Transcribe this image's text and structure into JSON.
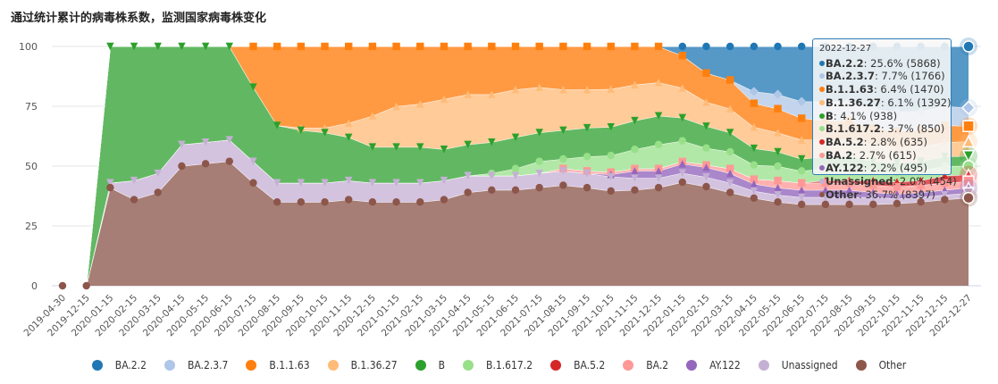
{
  "title": "通过统计累计的病毒株系数，监测国家病毒株变化",
  "chart_data": {
    "type": "area",
    "stacked": "percent",
    "title": "通过统计累计的病毒株系数，监测国家病毒株变化",
    "ylim": [
      0,
      100
    ],
    "yticks": [
      "0",
      "25",
      "50",
      "75",
      "100"
    ],
    "grid": true,
    "legend_position": "bottom",
    "categories": [
      "2019-04-30",
      "2019-12-15",
      "2020-01-15",
      "2020-02-15",
      "2020-03-15",
      "2020-04-15",
      "2020-05-15",
      "2020-06-15",
      "2020-07-15",
      "2020-08-15",
      "2020-09-15",
      "2020-10-15",
      "2020-11-15",
      "2020-12-15",
      "2021-01-15",
      "2021-02-15",
      "2021-03-15",
      "2021-04-15",
      "2021-05-15",
      "2021-06-15",
      "2021-07-15",
      "2021-08-15",
      "2021-09-15",
      "2021-10-15",
      "2021-11-15",
      "2021-12-15",
      "2022-01-15",
      "2022-02-15",
      "2022-03-15",
      "2022-04-15",
      "2022-05-15",
      "2022-06-15",
      "2022-07-15",
      "2022-08-15",
      "2022-09-15",
      "2022-10-15",
      "2022-11-15",
      "2022-12-15",
      "2022-12-27"
    ],
    "series": [
      {
        "name": "Other",
        "color": "#8c564b",
        "fill": "#a67e75",
        "marker": "circle",
        "values": [
          0,
          0,
          41,
          36,
          39,
          50,
          51,
          52,
          43,
          35,
          35,
          35,
          36,
          35,
          35,
          35,
          36,
          39,
          40,
          40,
          41,
          42,
          41,
          40,
          40,
          41,
          45,
          41,
          39,
          37,
          35,
          34,
          34,
          34,
          34,
          34,
          35,
          36,
          36.7
        ]
      },
      {
        "name": "Unassigned",
        "color": "#c5b0d5",
        "fill": "#d4c3df",
        "marker": "triangle-down",
        "values": [
          0,
          0,
          2,
          8,
          8,
          9,
          9,
          9,
          9,
          8,
          8,
          8,
          8,
          8,
          8,
          8,
          8,
          7,
          6,
          6,
          6,
          6,
          6,
          6,
          5,
          4,
          4,
          4,
          4,
          3,
          3,
          3,
          3,
          3,
          3,
          2,
          2,
          2,
          2.0
        ]
      },
      {
        "name": "AY.122",
        "color": "#9467bd",
        "fill": "#aa87cb",
        "marker": "triangle",
        "values": [
          0,
          0,
          0,
          0,
          0,
          0,
          0,
          0,
          0,
          0,
          0,
          0,
          0,
          0,
          0,
          0,
          0,
          0,
          0,
          0,
          0,
          0,
          0,
          1,
          3,
          3,
          4,
          4,
          4,
          3,
          3,
          3,
          3,
          3,
          2,
          2,
          2,
          2,
          2.2
        ]
      },
      {
        "name": "BA.2",
        "color": "#ff9896",
        "fill": "#ffb1af",
        "marker": "square",
        "values": [
          0,
          0,
          0,
          0,
          0,
          0,
          0,
          0,
          0,
          0,
          0,
          0,
          0,
          0,
          0,
          0,
          0,
          0,
          0,
          0,
          0,
          1,
          1,
          1,
          1,
          1,
          1,
          1,
          2,
          2,
          3,
          3,
          3,
          3,
          3,
          3,
          3,
          3,
          2.7
        ]
      },
      {
        "name": "BA.5.2",
        "color": "#d62728",
        "fill": "#e05a5b",
        "marker": "triangle",
        "values": [
          0,
          0,
          0,
          0,
          0,
          0,
          0,
          0,
          0,
          0,
          0,
          0,
          0,
          0,
          0,
          0,
          0,
          0,
          0,
          0,
          0,
          0,
          0,
          0,
          0,
          0,
          0,
          0,
          0,
          0,
          0,
          0,
          1,
          1,
          2,
          2,
          2,
          3,
          2.8
        ]
      },
      {
        "name": "B.1.617.2",
        "color": "#98df8a",
        "fill": "#b2e8a7",
        "marker": "circle",
        "values": [
          0,
          0,
          0,
          0,
          0,
          0,
          0,
          0,
          0,
          0,
          0,
          0,
          0,
          0,
          0,
          0,
          0,
          0,
          1,
          3,
          5,
          4,
          6,
          7,
          8,
          10,
          9,
          7,
          7,
          6,
          6,
          5,
          5,
          5,
          4,
          4,
          4,
          4,
          3.7
        ]
      },
      {
        "name": "B",
        "color": "#2ca02c",
        "fill": "#62b862",
        "marker": "triangle-down",
        "values": [
          0,
          0,
          57,
          56,
          53,
          41,
          40,
          39,
          31,
          24,
          22,
          21,
          18,
          15,
          15,
          15,
          13,
          13,
          13,
          13,
          12,
          12,
          12,
          12,
          12,
          12,
          10,
          9,
          8,
          7,
          6,
          5,
          5,
          5,
          4,
          4,
          4,
          4,
          4.1
        ]
      },
      {
        "name": "B.1.36.27",
        "color": "#ffbb78",
        "fill": "#ffcb98",
        "marker": "triangle",
        "values": [
          0,
          0,
          0,
          0,
          0,
          0,
          0,
          0,
          0,
          0,
          1,
          2,
          6,
          13,
          17,
          18,
          21,
          21,
          20,
          20,
          19,
          17,
          16,
          16,
          15,
          14,
          13,
          10,
          10,
          9,
          8,
          8,
          7,
          7,
          7,
          6,
          6,
          6,
          6.1
        ]
      },
      {
        "name": "B.1.1.63",
        "color": "#ff7f0e",
        "fill": "#ff9a43",
        "marker": "square",
        "values": [
          0,
          0,
          0,
          0,
          0,
          0,
          0,
          0,
          17,
          33,
          34,
          34,
          32,
          29,
          25,
          24,
          22,
          20,
          20,
          18,
          17,
          18,
          18,
          18,
          16,
          15,
          14,
          12,
          12,
          10,
          10,
          9,
          8,
          8,
          7,
          7,
          7,
          7,
          6.4
        ]
      },
      {
        "name": "BA.2.3.7",
        "color": "#aec7e8",
        "fill": "#c3d5ec",
        "marker": "diamond",
        "values": [
          0,
          0,
          0,
          0,
          0,
          0,
          0,
          0,
          0,
          0,
          0,
          0,
          0,
          0,
          0,
          0,
          0,
          0,
          0,
          0,
          0,
          0,
          0,
          0,
          0,
          0,
          0,
          0,
          0,
          5,
          6,
          7,
          8,
          8,
          8,
          8,
          8,
          8,
          7.7
        ]
      },
      {
        "name": "BA.2.2",
        "color": "#1f77b4",
        "fill": "#5698c6",
        "marker": "circle",
        "values": [
          0,
          0,
          0,
          0,
          0,
          0,
          0,
          0,
          0,
          0,
          0,
          0,
          0,
          0,
          0,
          0,
          0,
          0,
          0,
          0,
          0,
          0,
          0,
          0,
          0,
          0,
          4,
          11,
          14,
          19,
          20,
          23,
          23,
          23,
          26,
          27,
          27,
          25,
          25.6
        ]
      }
    ],
    "legend": [
      "BA.2.2",
      "BA.2.3.7",
      "B.1.1.63",
      "B.1.36.27",
      "B",
      "B.1.617.2",
      "BA.5.2",
      "BA.2",
      "AY.122",
      "Unassigned",
      "Other"
    ],
    "tooltip": {
      "date": "2022-12-27",
      "rows": [
        {
          "name": "BA.2.2",
          "text": ": 25.6% (5868)",
          "color": "#1f77b4"
        },
        {
          "name": "BA.2.3.7",
          "text": ": 7.7% (1766)",
          "color": "#aec7e8"
        },
        {
          "name": "B.1.1.63",
          "text": ": 6.4% (1470)",
          "color": "#ff7f0e"
        },
        {
          "name": "B.1.36.27",
          "text": ": 6.1% (1392)",
          "color": "#ffbb78"
        },
        {
          "name": "B",
          "text": ": 4.1% (938)",
          "color": "#2ca02c"
        },
        {
          "name": "B.1.617.2",
          "text": ": 3.7% (850)",
          "color": "#98df8a"
        },
        {
          "name": "BA.5.2",
          "text": ": 2.8% (635)",
          "color": "#d62728"
        },
        {
          "name": "BA.2",
          "text": ": 2.7% (615)",
          "color": "#ff9896"
        },
        {
          "name": "AY.122",
          "text": ": 2.2% (495)",
          "color": "#9467bd"
        },
        {
          "name": "Unassigned",
          "text": ": 2.0% (454)",
          "color": "#c5b0d5"
        },
        {
          "name": "Other",
          "text": ": 36.7% (8397)",
          "color": "#8c564b"
        }
      ]
    }
  }
}
